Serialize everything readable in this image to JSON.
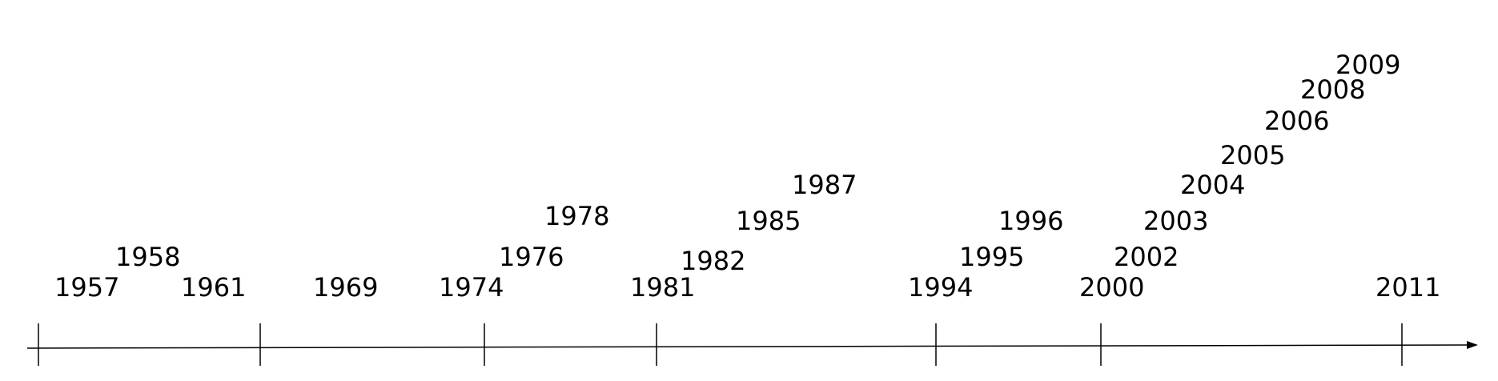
{
  "timeline": {
    "tick_years": [
      "1957",
      "1961",
      "1974",
      "1981",
      "1994",
      "2000",
      "2011"
    ],
    "labels": [
      "1957",
      "1958",
      "1961",
      "1969",
      "1974",
      "1976",
      "1978",
      "1981",
      "1982",
      "1985",
      "1987",
      "1994",
      "1995",
      "1996",
      "2000",
      "2002",
      "2003",
      "2004",
      "2005",
      "2006",
      "2008",
      "2009",
      "2011"
    ],
    "colors": {
      "line": "#000000",
      "text": "#000000"
    }
  }
}
